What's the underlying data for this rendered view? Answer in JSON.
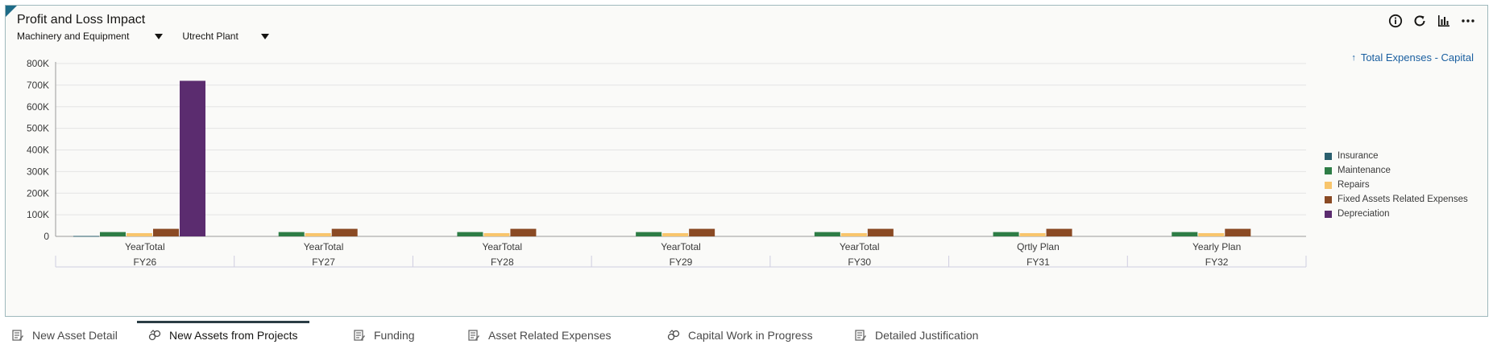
{
  "panel": {
    "title": "Profit and Loss Impact",
    "selectors": [
      {
        "label": "Machinery and Equipment"
      },
      {
        "label": "Utrecht Plant"
      }
    ],
    "tools": [
      "info-icon",
      "refresh-icon",
      "chart-type-icon",
      "more-icon"
    ],
    "drill_link": "Total Expenses - Capital"
  },
  "chart_data": {
    "type": "bar",
    "ylim": [
      0,
      800000
    ],
    "y_ticks": [
      "0",
      "100K",
      "200K",
      "300K",
      "400K",
      "500K",
      "600K",
      "700K",
      "800K"
    ],
    "categories": [
      "YearTotal",
      "YearTotal",
      "YearTotal",
      "YearTotal",
      "YearTotal",
      "Qrtly Plan",
      "Yearly Plan"
    ],
    "groups": [
      "FY26",
      "FY27",
      "FY28",
      "FY29",
      "FY30",
      "FY31",
      "FY32"
    ],
    "legend_position": "right",
    "series": [
      {
        "name": "Insurance",
        "color": "#2a5f6e",
        "values": [
          2000,
          0,
          0,
          0,
          0,
          0,
          0
        ]
      },
      {
        "name": "Maintenance",
        "color": "#2e7d46",
        "values": [
          20000,
          20000,
          20000,
          20000,
          20000,
          20000,
          20000
        ]
      },
      {
        "name": "Repairs",
        "color": "#f8c56c",
        "values": [
          15000,
          15000,
          15000,
          15000,
          15000,
          15000,
          15000
        ]
      },
      {
        "name": "Fixed Assets Related Expenses",
        "color": "#8a4a24",
        "values": [
          35000,
          35000,
          35000,
          35000,
          35000,
          35000,
          35000
        ]
      },
      {
        "name": "Depreciation",
        "color": "#5b2c6f",
        "values": [
          720000,
          0,
          0,
          0,
          0,
          0,
          0
        ]
      }
    ]
  },
  "tabs": [
    {
      "label": "New Asset Detail",
      "icon": "form-icon",
      "active": false
    },
    {
      "label": "New Assets from Projects",
      "icon": "chart-icon",
      "active": true
    },
    {
      "label": "Funding",
      "icon": "form-icon",
      "active": false
    },
    {
      "label": "Asset Related Expenses",
      "icon": "form-icon",
      "active": false
    },
    {
      "label": "Capital Work in Progress",
      "icon": "chart-icon",
      "active": false
    },
    {
      "label": "Detailed Justification",
      "icon": "form-icon",
      "active": false
    }
  ]
}
